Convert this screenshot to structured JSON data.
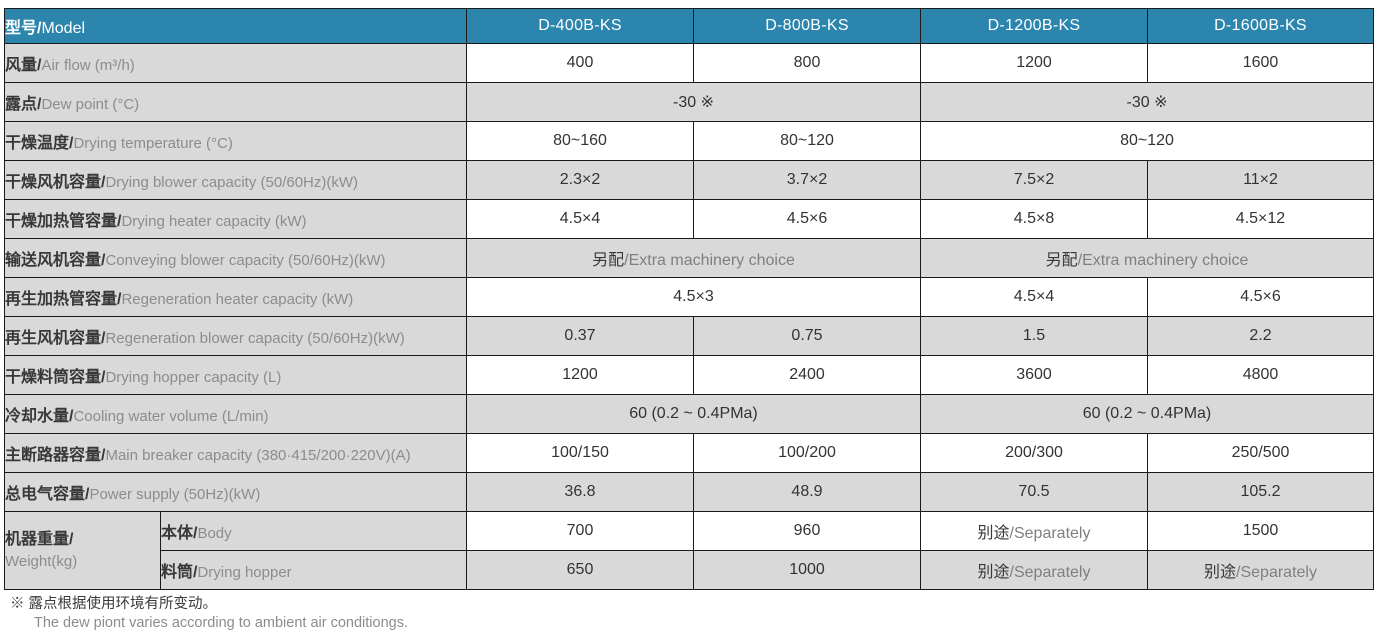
{
  "colors": {
    "header_bg": "#2b85ad",
    "header_text": "#ffffff",
    "gray_cell": "#d9d9d9",
    "white_cell": "#ffffff",
    "border": "#1a1a1a",
    "text_dark": "#383838",
    "text_gray": "#8c8c8c"
  },
  "header": {
    "label_zh": "型号",
    "label_en": "Model",
    "models": [
      "D-400B-KS",
      "D-800B-KS",
      "D-1200B-KS",
      "D-1600B-KS"
    ]
  },
  "rows": [
    {
      "label_zh": "风量",
      "label_en": "Air flow (m³/h)",
      "shade": "white",
      "cells": [
        {
          "t": "400"
        },
        {
          "t": "800"
        },
        {
          "t": "1200"
        },
        {
          "t": "1600"
        }
      ]
    },
    {
      "label_zh": "露点",
      "label_en": "Dew point (°C)",
      "shade": "gray",
      "cells": [
        {
          "t": "-30 ※",
          "span": 2
        },
        {
          "t": "-30 ※",
          "span": 2
        }
      ]
    },
    {
      "label_zh": "干燥温度",
      "label_en": "Drying temperature (°C)",
      "shade": "white",
      "cells": [
        {
          "t": "80~160"
        },
        {
          "t": "80~120"
        },
        {
          "t": "80~120",
          "span": 2
        }
      ]
    },
    {
      "label_zh": "干燥风机容量",
      "label_en": "Drying blower capacity (50/60Hz)(kW)",
      "shade": "gray",
      "cells": [
        {
          "t": "2.3×2"
        },
        {
          "t": "3.7×2"
        },
        {
          "t": "7.5×2"
        },
        {
          "t": "11×2"
        }
      ]
    },
    {
      "label_zh": "干燥加热管容量",
      "label_en": "Drying heater capacity (kW)",
      "shade": "white",
      "cells": [
        {
          "t": "4.5×4"
        },
        {
          "t": "4.5×6"
        },
        {
          "t": "4.5×8"
        },
        {
          "t": "4.5×12"
        }
      ]
    },
    {
      "label_zh": "输送风机容量",
      "label_en": "Conveying blower capacity (50/60Hz)(kW)",
      "shade": "gray",
      "cells": [
        {
          "zh": "另配",
          "en": "Extra machinery choice",
          "span": 2
        },
        {
          "zh": "另配",
          "en": "Extra machinery choice",
          "span": 2
        }
      ]
    },
    {
      "label_zh": "再生加热管容量",
      "label_en": "Regeneration heater capacity (kW)",
      "shade": "white",
      "cells": [
        {
          "t": "4.5×3",
          "span": 2
        },
        {
          "t": "4.5×4"
        },
        {
          "t": "4.5×6"
        }
      ]
    },
    {
      "label_zh": "再生风机容量",
      "label_en": "Regeneration blower capacity (50/60Hz)(kW)",
      "shade": "gray",
      "cells": [
        {
          "t": "0.37"
        },
        {
          "t": "0.75"
        },
        {
          "t": "1.5"
        },
        {
          "t": "2.2"
        }
      ]
    },
    {
      "label_zh": "干燥料筒容量",
      "label_en": "Drying hopper capacity (L)",
      "shade": "white",
      "cells": [
        {
          "t": "1200"
        },
        {
          "t": "2400"
        },
        {
          "t": "3600"
        },
        {
          "t": "4800"
        }
      ]
    },
    {
      "label_zh": "冷却水量",
      "label_en": "Cooling water volume (L/min)",
      "shade": "gray",
      "cells": [
        {
          "t": "60 (0.2 ~ 0.4PMa)",
          "span": 2
        },
        {
          "t": "60 (0.2 ~ 0.4PMa)",
          "span": 2
        }
      ]
    },
    {
      "label_zh": "主断路器容量",
      "label_en": "Main breaker capacity (380·415/200·220V)(A)",
      "shade": "white",
      "cells": [
        {
          "t": "100/150"
        },
        {
          "t": "100/200"
        },
        {
          "t": "200/300"
        },
        {
          "t": "250/500"
        }
      ]
    },
    {
      "label_zh": "总电气容量",
      "label_en": "Power supply (50Hz)(kW)",
      "shade": "gray",
      "cells": [
        {
          "t": "36.8"
        },
        {
          "t": "48.9"
        },
        {
          "t": "70.5"
        },
        {
          "t": "105.2"
        }
      ]
    }
  ],
  "weight_group": {
    "label_line1": "机器重量/",
    "label_line2": "Weight(kg)",
    "rows": [
      {
        "sub_zh": "本体",
        "sub_en": "Body",
        "shade": "white",
        "cells": [
          {
            "t": "700"
          },
          {
            "t": "960"
          },
          {
            "zh": "别途",
            "en": "Separately"
          },
          {
            "t": "1500"
          }
        ]
      },
      {
        "sub_zh": "料筒",
        "sub_en": "Drying hopper",
        "shade": "gray",
        "cells": [
          {
            "t": "650"
          },
          {
            "t": "1000"
          },
          {
            "zh": "别途",
            "en": "Separately"
          },
          {
            "zh": "别途",
            "en": "Separately"
          }
        ]
      }
    ]
  },
  "footnote": {
    "line1": "※ 露点根据使用环境有所变动。",
    "line2": "The dew piont varies according to ambient air conditiongs."
  }
}
